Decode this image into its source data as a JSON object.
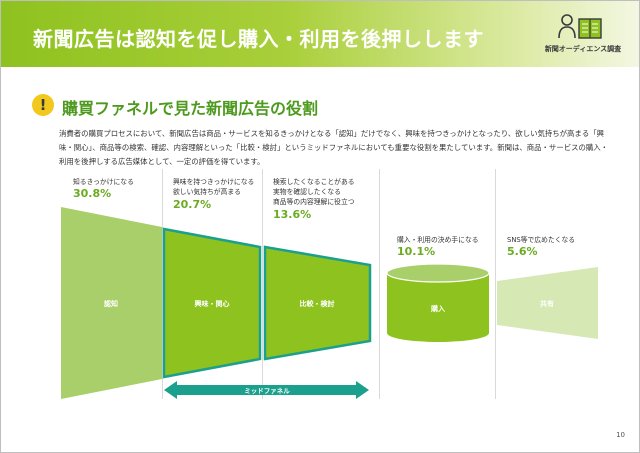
{
  "header": {
    "title": "新聞広告は認知を促し購入・利用を後押しします",
    "logo_text": "新聞オーディエンス調査",
    "logo_icon": "reader-book-icon",
    "banner_color": "#8ec21f"
  },
  "section": {
    "icon": "exclamation-icon",
    "title": "購買ファネルで見た新聞広告の役割",
    "body": "消費者の購買プロセスにおいて、新聞広告は商品・サービスを知るきっかけとなる「認知」だけでなく、興味を持つきっかけとなったり、欲しい気持ちが高まる「興味・関心」、商品等の検索、確認、内容理解といった「比較・検討」というミッドファネルにおいても重要な役割を果たしています。新聞は、商品・サービスの購入・利用を後押しする広告媒体として、一定の評価を得ています。"
  },
  "stages": [
    {
      "label": "知るきっかけになる",
      "value": "30.8%",
      "name": "認知"
    },
    {
      "label": "興味を持つきっかけになる\n欲しい気持ちが高まる",
      "value": "20.7%",
      "name": "興味・関心"
    },
    {
      "label": "検索したくなることがある\n実物を確認したくなる\n商品等の内容理解に役立つ",
      "value": "13.6%",
      "name": "比較・検討"
    },
    {
      "label": "購入・利用の決め手になる",
      "value": "10.1%",
      "name": "購入"
    },
    {
      "label": "SNS等で広めたくなる",
      "value": "5.6%",
      "name": "共有"
    }
  ],
  "mid_funnel_label": "ミッドファネル",
  "colors": {
    "accent_green": "#8ec21f",
    "light_green": "#a9cf6a",
    "pale_green": "#d6e8b4",
    "teal": "#1aa08c"
  },
  "page_number": "10"
}
